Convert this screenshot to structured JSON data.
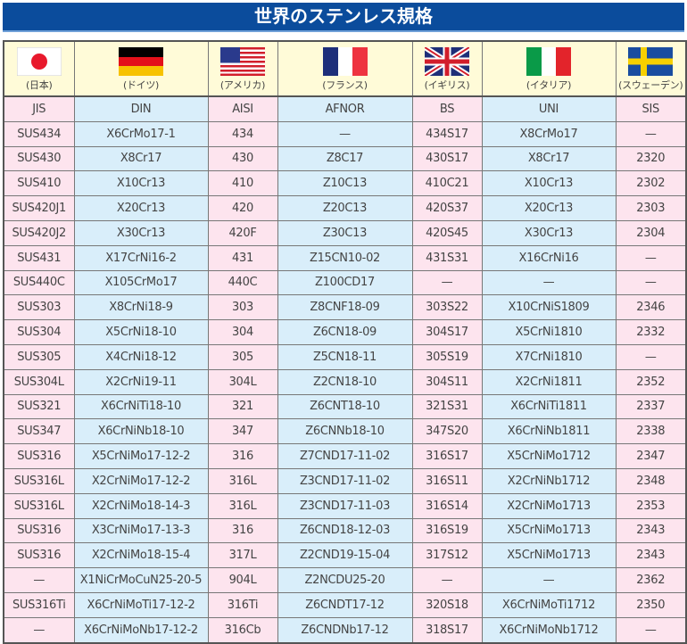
{
  "title": "世界のステンレス規格",
  "countries": [
    {
      "name": "(日本)",
      "flag": "japan-flag",
      "standard": "JIS"
    },
    {
      "name": "(ドイツ)",
      "flag": "germany-flag",
      "standard": "DIN"
    },
    {
      "name": "(アメリカ)",
      "flag": "usa-flag",
      "standard": "AISI"
    },
    {
      "name": "(フランス)",
      "flag": "france-flag",
      "standard": "AFNOR"
    },
    {
      "name": "(イギリス)",
      "flag": "uk-flag",
      "standard": "BS"
    },
    {
      "name": "(イタリア)",
      "flag": "italy-flag",
      "standard": "UNI"
    },
    {
      "name": "(スウェーデン)",
      "flag": "sweden-flag",
      "standard": "SIS"
    }
  ],
  "colors": {
    "title_bg": "#0b4c9c",
    "pink": "#fde4ee",
    "blue": "#d9eefa",
    "header": "#fffbd8"
  },
  "rows": [
    [
      "SUS434",
      "X6CrMo17-1",
      "434",
      "—",
      "434S17",
      "X8CrMo17",
      "—"
    ],
    [
      "SUS430",
      "X8Cr17",
      "430",
      "Z8C17",
      "430S17",
      "X8Cr17",
      "2320"
    ],
    [
      "SUS410",
      "X10Cr13",
      "410",
      "Z10C13",
      "410C21",
      "X10Cr13",
      "2302"
    ],
    [
      "SUS420J1",
      "X20Cr13",
      "420",
      "Z20C13",
      "420S37",
      "X20Cr13",
      "2303"
    ],
    [
      "SUS420J2",
      "X30Cr13",
      "420F",
      "Z30C13",
      "420S45",
      "X30Cr13",
      "2304"
    ],
    [
      "SUS431",
      "X17CrNi16-2",
      "431",
      "Z15CN10-02",
      "431S31",
      "X16CrNi16",
      "—"
    ],
    [
      "SUS440C",
      "X105CrMo17",
      "440C",
      "Z100CD17",
      "—",
      "—",
      "—"
    ],
    [
      "SUS303",
      "X8CrNi18-9",
      "303",
      "Z8CNF18-09",
      "303S22",
      "X10CrNiS1809",
      "2346"
    ],
    [
      "SUS304",
      "X5CrNi18-10",
      "304",
      "Z6CN18-09",
      "304S17",
      "X5CrNi1810",
      "2332"
    ],
    [
      "SUS305",
      "X4CrNi18-12",
      "305",
      "Z5CN18-11",
      "305S19",
      "X7CrNi1810",
      "—"
    ],
    [
      "SUS304L",
      "X2CrNi19-11",
      "304L",
      "Z2CN18-10",
      "304S11",
      "X2CrNi1811",
      "2352"
    ],
    [
      "SUS321",
      "X6CrNiTi18-10",
      "321",
      "Z6CNT18-10",
      "321S31",
      "X6CrNiTi1811",
      "2337"
    ],
    [
      "SUS347",
      "X6CrNiNb18-10",
      "347",
      "Z6CNNb18-10",
      "347S20",
      "X6CrNiNb1811",
      "2338"
    ],
    [
      "SUS316",
      "X5CrNiMo17-12-2",
      "316",
      "Z7CND17-11-02",
      "316S17",
      "X5CrNiMo1712",
      "2347"
    ],
    [
      "SUS316L",
      "X2CrNiMo17-12-2",
      "316L",
      "Z3CND17-11-02",
      "316S11",
      "X2CrNiNb1712",
      "2348"
    ],
    [
      "SUS316L",
      "X2CrNiMo18-14-3",
      "316L",
      "Z3CND17-11-03",
      "316S14",
      "X2CrNiMo1713",
      "2353"
    ],
    [
      "SUS316",
      "X3CrNiMo17-13-3",
      "316",
      "Z6CND18-12-03",
      "316S19",
      "X5CrNiMo1713",
      "2343"
    ],
    [
      "SUS316",
      "X2CrNiMo18-15-4",
      "317L",
      "Z2CND19-15-04",
      "317S12",
      "X5CrNiMo1713",
      "2343"
    ],
    [
      "—",
      "X1NiCrMoCuN25-20-5",
      "904L",
      "Z2NCDU25-20",
      "—",
      "—",
      "2362"
    ],
    [
      "SUS316Ti",
      "X6CrNiMoTi17-12-2",
      "316Ti",
      "Z6CNDT17-12",
      "320S18",
      "X6CrNiMoTi1712",
      "2350"
    ],
    [
      "—",
      "X6CrNiMoNb17-12-2",
      "316Cb",
      "Z6CNDNb17-12",
      "318S17",
      "X6CrNiMoNb1712",
      "—"
    ]
  ]
}
